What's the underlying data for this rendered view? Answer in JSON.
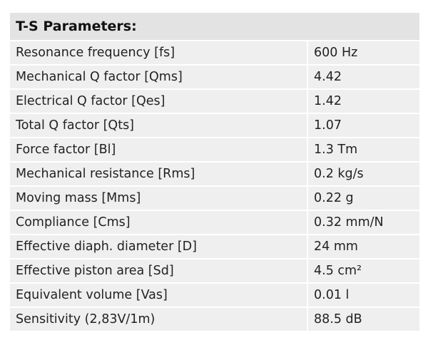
{
  "table": {
    "title": "T-S Parameters:",
    "rows": [
      [
        "Resonance frequency [fs]",
        "600 Hz"
      ],
      [
        "Mechanical Q factor [Qms]",
        "4.42"
      ],
      [
        "Electrical Q factor [Qes]",
        "1.42"
      ],
      [
        "Total Q factor [Qts]",
        "1.07"
      ],
      [
        "Force factor [Bl]",
        "1.3 Tm"
      ],
      [
        "Mechanical resistance [Rms]",
        "0.2 kg/s"
      ],
      [
        "Moving mass [Mms]",
        "0.22 g"
      ],
      [
        "Compliance [Cms]",
        "0.32 mm/N"
      ],
      [
        "Effective diaph. diameter [D]",
        "24 mm"
      ],
      [
        "Effective piston area [Sd]",
        "4.5 cm²"
      ],
      [
        "Equivalent volume [Vas]",
        "0.01 l"
      ],
      [
        "Sensitivity (2,83V/1m)",
        "88.5 dB"
      ]
    ]
  }
}
